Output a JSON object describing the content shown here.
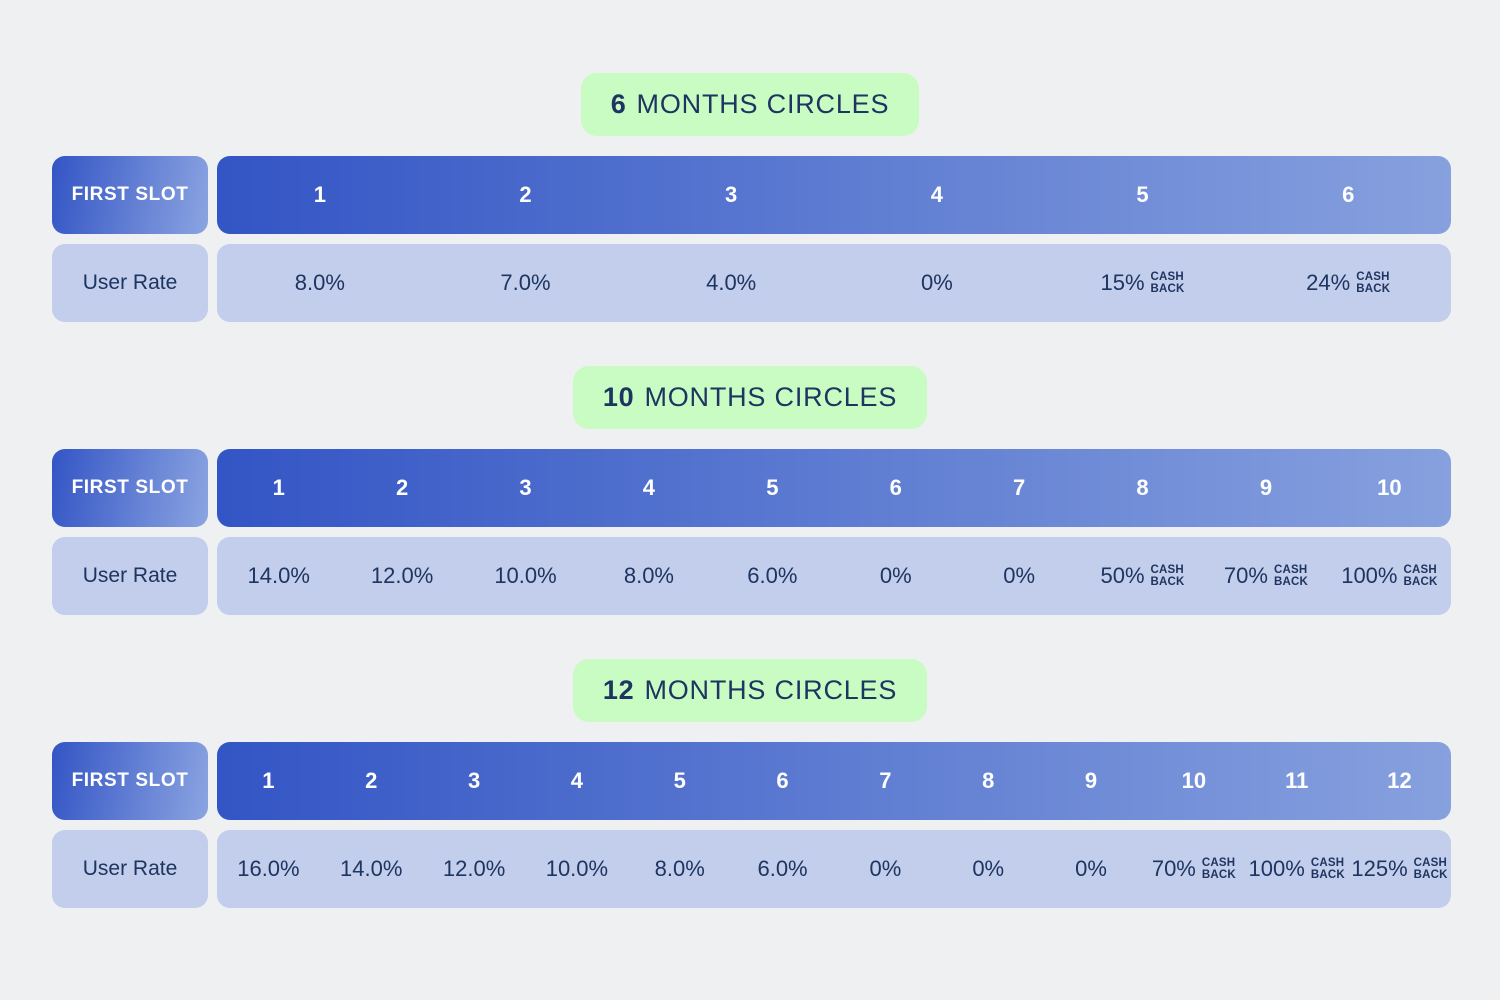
{
  "colors": {
    "page_background": "#eef0f2",
    "badge_background": "#c9fcc2",
    "navy_text": "#1d3560",
    "header_gradient_start": "#3355c5",
    "header_gradient_end": "#87a1de",
    "value_row_background": "#c3cdec",
    "header_text": "#ffffff"
  },
  "cashback_word": {
    "line1": "CASH",
    "line2": "BACK"
  },
  "tables": [
    {
      "id": "6-months",
      "title_number": "6",
      "title_text": "MONTHS CIRCLES",
      "first_slot_label": "FIRST SLOT",
      "user_rate_label": "User Rate",
      "slots": [
        "1",
        "2",
        "3",
        "4",
        "5",
        "6"
      ],
      "rates": [
        {
          "value": "8.0%",
          "cashback": false
        },
        {
          "value": "7.0%",
          "cashback": false
        },
        {
          "value": "4.0%",
          "cashback": false
        },
        {
          "value": "0%",
          "cashback": false
        },
        {
          "value": "15%",
          "cashback": true
        },
        {
          "value": "24%",
          "cashback": true
        }
      ]
    },
    {
      "id": "10-months",
      "title_number": "10",
      "title_text": "MONTHS CIRCLES",
      "first_slot_label": "FIRST SLOT",
      "user_rate_label": "User Rate",
      "slots": [
        "1",
        "2",
        "3",
        "4",
        "5",
        "6",
        "7",
        "8",
        "9",
        "10"
      ],
      "rates": [
        {
          "value": "14.0%",
          "cashback": false
        },
        {
          "value": "12.0%",
          "cashback": false
        },
        {
          "value": "10.0%",
          "cashback": false
        },
        {
          "value": "8.0%",
          "cashback": false
        },
        {
          "value": "6.0%",
          "cashback": false
        },
        {
          "value": "0%",
          "cashback": false
        },
        {
          "value": "0%",
          "cashback": false
        },
        {
          "value": "50%",
          "cashback": true
        },
        {
          "value": "70%",
          "cashback": true
        },
        {
          "value": "100%",
          "cashback": true
        }
      ]
    },
    {
      "id": "12-months",
      "title_number": "12",
      "title_text": "MONTHS CIRCLES",
      "first_slot_label": "FIRST SLOT",
      "user_rate_label": "User Rate",
      "slots": [
        "1",
        "2",
        "3",
        "4",
        "5",
        "6",
        "7",
        "8",
        "9",
        "10",
        "11",
        "12"
      ],
      "rates": [
        {
          "value": "16.0%",
          "cashback": false
        },
        {
          "value": "14.0%",
          "cashback": false
        },
        {
          "value": "12.0%",
          "cashback": false
        },
        {
          "value": "10.0%",
          "cashback": false
        },
        {
          "value": "8.0%",
          "cashback": false
        },
        {
          "value": "6.0%",
          "cashback": false
        },
        {
          "value": "0%",
          "cashback": false
        },
        {
          "value": "0%",
          "cashback": false
        },
        {
          "value": "0%",
          "cashback": false
        },
        {
          "value": "70%",
          "cashback": true
        },
        {
          "value": "100%",
          "cashback": true
        },
        {
          "value": "125%",
          "cashback": true
        }
      ]
    }
  ]
}
